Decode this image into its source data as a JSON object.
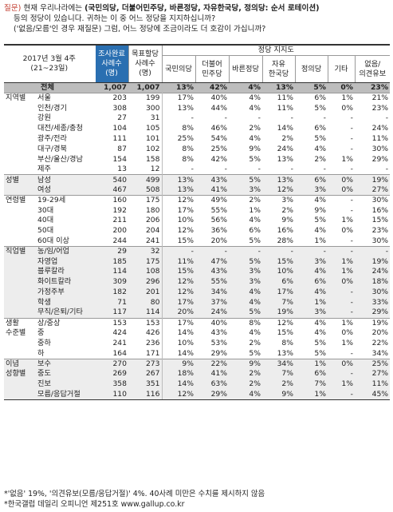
{
  "question": {
    "prefix": "질문)",
    "line1_text": " 현재 우리나라에는 ",
    "line1_bold": "(국민의당, 더불어민주당, 바른정당, 자유한국당, 정의당: 순서 로테이션)",
    "line2": "등의 정당이 있습니다. 귀하는 이 중 어느 정당을 지지하십니까?",
    "line3": "('없음/모름'인 경우 재질문) 그럼, 어느 정당에 조금이라도 더 호감이 가십니까?"
  },
  "header": {
    "title_line1": "2017년 3월 4주",
    "title_line2": "(21~23일)",
    "sample_line1": "조사완료",
    "sample_line2": "사례수",
    "sample_line3": "(명)",
    "target_line1": "목표할당",
    "target_line2": "사례수",
    "target_line3": "(명)",
    "support_label": "정당 지지도",
    "parties": [
      {
        "line1": "국민의당",
        "line2": ""
      },
      {
        "line1": "더불어",
        "line2": "민주당"
      },
      {
        "line1": "바른정당",
        "line2": ""
      },
      {
        "line1": "자유",
        "line2": "한국당"
      },
      {
        "line1": "정의당",
        "line2": ""
      },
      {
        "line1": "기타",
        "line2": ""
      },
      {
        "line1": "없음/",
        "line2": "의견유보"
      }
    ]
  },
  "total": {
    "label": "전체",
    "n": "1,007",
    "target": "1,007",
    "v": [
      "13%",
      "42%",
      "4%",
      "13%",
      "5%",
      "0%",
      "23%"
    ]
  },
  "groups": [
    {
      "name": "지역별",
      "rows": [
        {
          "sub": "서울",
          "n": "203",
          "t": "199",
          "v": [
            "17%",
            "40%",
            "4%",
            "11%",
            "6%",
            "1%",
            "21%"
          ]
        },
        {
          "sub": "인천/경기",
          "n": "308",
          "t": "300",
          "v": [
            "13%",
            "44%",
            "4%",
            "11%",
            "5%",
            "0%",
            "23%"
          ]
        },
        {
          "sub": "강원",
          "n": "27",
          "t": "31",
          "v": [
            "-",
            "-",
            "-",
            "-",
            "-",
            "-",
            "-"
          ]
        },
        {
          "sub": "대전/세종/충청",
          "n": "104",
          "t": "105",
          "v": [
            "8%",
            "46%",
            "2%",
            "14%",
            "6%",
            "-",
            "24%"
          ]
        },
        {
          "sub": "광주/전라",
          "n": "111",
          "t": "101",
          "v": [
            "25%",
            "54%",
            "4%",
            "2%",
            "5%",
            "-",
            "11%"
          ]
        },
        {
          "sub": "대구/경북",
          "n": "87",
          "t": "102",
          "v": [
            "8%",
            "25%",
            "9%",
            "24%",
            "4%",
            "-",
            "30%"
          ]
        },
        {
          "sub": "부산/울산/경남",
          "n": "154",
          "t": "158",
          "v": [
            "8%",
            "42%",
            "5%",
            "13%",
            "2%",
            "1%",
            "29%"
          ]
        },
        {
          "sub": "제주",
          "n": "13",
          "t": "12",
          "v": [
            "-",
            "-",
            "-",
            "-",
            "-",
            "-",
            "-"
          ]
        }
      ]
    },
    {
      "name": "성별",
      "rows": [
        {
          "sub": "남성",
          "n": "540",
          "t": "499",
          "v": [
            "13%",
            "43%",
            "5%",
            "13%",
            "6%",
            "0%",
            "19%"
          ]
        },
        {
          "sub": "여성",
          "n": "467",
          "t": "508",
          "v": [
            "13%",
            "41%",
            "3%",
            "12%",
            "3%",
            "0%",
            "27%"
          ]
        }
      ]
    },
    {
      "name": "연령별",
      "rows": [
        {
          "sub": "19-29세",
          "n": "160",
          "t": "175",
          "v": [
            "12%",
            "49%",
            "2%",
            "3%",
            "4%",
            "-",
            "30%"
          ]
        },
        {
          "sub": "30대",
          "n": "192",
          "t": "180",
          "v": [
            "17%",
            "55%",
            "1%",
            "2%",
            "9%",
            "-",
            "16%"
          ]
        },
        {
          "sub": "40대",
          "n": "211",
          "t": "206",
          "v": [
            "10%",
            "56%",
            "4%",
            "9%",
            "5%",
            "1%",
            "15%"
          ]
        },
        {
          "sub": "50대",
          "n": "200",
          "t": "204",
          "v": [
            "12%",
            "36%",
            "6%",
            "16%",
            "4%",
            "0%",
            "23%"
          ]
        },
        {
          "sub": "60대 이상",
          "n": "244",
          "t": "241",
          "v": [
            "15%",
            "20%",
            "5%",
            "28%",
            "1%",
            "-",
            "30%"
          ]
        }
      ]
    },
    {
      "name": "직업별",
      "rows": [
        {
          "sub": "농/임/어업",
          "n": "29",
          "t": "32",
          "v": [
            "-",
            "-",
            "-",
            "-",
            "-",
            "-",
            "-"
          ]
        },
        {
          "sub": "자영업",
          "n": "185",
          "t": "175",
          "v": [
            "11%",
            "47%",
            "5%",
            "15%",
            "3%",
            "1%",
            "19%"
          ]
        },
        {
          "sub": "블루칼라",
          "n": "114",
          "t": "108",
          "v": [
            "15%",
            "43%",
            "3%",
            "10%",
            "4%",
            "1%",
            "24%"
          ]
        },
        {
          "sub": "화이트칼라",
          "n": "309",
          "t": "296",
          "v": [
            "12%",
            "55%",
            "3%",
            "6%",
            "6%",
            "0%",
            "18%"
          ]
        },
        {
          "sub": "가정주부",
          "n": "182",
          "t": "201",
          "v": [
            "12%",
            "34%",
            "4%",
            "17%",
            "4%",
            "-",
            "30%"
          ]
        },
        {
          "sub": "학생",
          "n": "71",
          "t": "80",
          "v": [
            "17%",
            "37%",
            "4%",
            "7%",
            "1%",
            "-",
            "33%"
          ]
        },
        {
          "sub": "무직/은퇴/기타",
          "n": "117",
          "t": "114",
          "v": [
            "20%",
            "24%",
            "5%",
            "19%",
            "3%",
            "-",
            "29%"
          ]
        }
      ]
    },
    {
      "name": "생활",
      "name2": "수준별",
      "rows": [
        {
          "sub": "상/중상",
          "n": "153",
          "t": "153",
          "v": [
            "17%",
            "40%",
            "8%",
            "12%",
            "4%",
            "1%",
            "19%"
          ]
        },
        {
          "sub": "중",
          "n": "424",
          "t": "426",
          "v": [
            "14%",
            "43%",
            "4%",
            "15%",
            "4%",
            "0%",
            "20%"
          ]
        },
        {
          "sub": "중하",
          "n": "241",
          "t": "236",
          "v": [
            "10%",
            "53%",
            "2%",
            "8%",
            "5%",
            "1%",
            "22%"
          ]
        },
        {
          "sub": "하",
          "n": "164",
          "t": "171",
          "v": [
            "14%",
            "29%",
            "5%",
            "13%",
            "5%",
            "-",
            "34%"
          ]
        }
      ]
    },
    {
      "name": "이념",
      "name2": "성향별",
      "rows": [
        {
          "sub": "보수",
          "n": "270",
          "t": "273",
          "v": [
            "9%",
            "22%",
            "9%",
            "34%",
            "1%",
            "0%",
            "25%"
          ]
        },
        {
          "sub": "중도",
          "n": "269",
          "t": "267",
          "v": [
            "18%",
            "41%",
            "2%",
            "7%",
            "6%",
            "-",
            "27%"
          ]
        },
        {
          "sub": "진보",
          "n": "358",
          "t": "351",
          "v": [
            "14%",
            "63%",
            "2%",
            "2%",
            "7%",
            "1%",
            "11%"
          ]
        },
        {
          "sub": "모름/응답거절",
          "n": "110",
          "t": "116",
          "v": [
            "12%",
            "29%",
            "4%",
            "9%",
            "1%",
            "-",
            "45%"
          ]
        }
      ]
    }
  ],
  "footer": {
    "line1": "*'없음' 19%, '의견유보(모름/응답거절)' 4%. 40사례 미만은 수치를 제시하지 않음",
    "line2": "*한국갤럽 데일리 오피니언 제251호 www.gallup.co.kr"
  },
  "colors": {
    "header_blue": "#2a6fb1",
    "total_row": "#bdbdbd",
    "shaded_group": "#ededed"
  }
}
